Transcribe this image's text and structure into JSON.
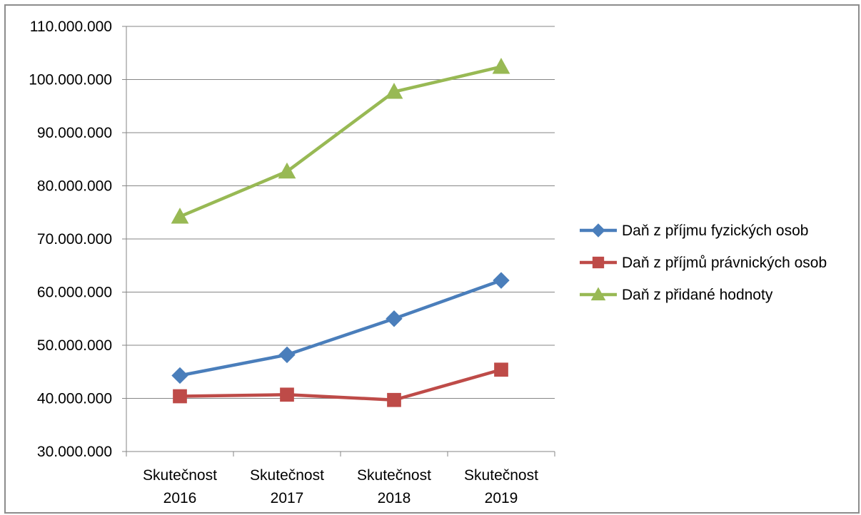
{
  "chart_data": {
    "type": "line",
    "categories": [
      [
        "Skutečnost",
        "2016"
      ],
      [
        "Skutečnost",
        "2017"
      ],
      [
        "Skutečnost",
        "2018"
      ],
      [
        "Skutečnost",
        "2019"
      ]
    ],
    "ylim": [
      30000000,
      110000000
    ],
    "ytick_step": 10000000,
    "ytick_labels": [
      "30.000.000",
      "40.000.000",
      "50.000.000",
      "60.000.000",
      "70.000.000",
      "80.000.000",
      "90.000.000",
      "100.000.000",
      "110.000.000"
    ],
    "grid": true,
    "legend_position": "right",
    "series": [
      {
        "name": "Daň z příjmu fyzických osob",
        "values": [
          44300000,
          48200000,
          55000000,
          62200000
        ],
        "color": "#4a7ebb",
        "marker": "diamond"
      },
      {
        "name": "Daň z příjmů právnických osob",
        "values": [
          40400000,
          40700000,
          39700000,
          45400000
        ],
        "color": "#be4b48",
        "marker": "square"
      },
      {
        "name": "Daň z přidané hodnoty",
        "values": [
          74200000,
          82700000,
          97700000,
          102400000
        ],
        "color": "#98b954",
        "marker": "triangle"
      }
    ]
  }
}
